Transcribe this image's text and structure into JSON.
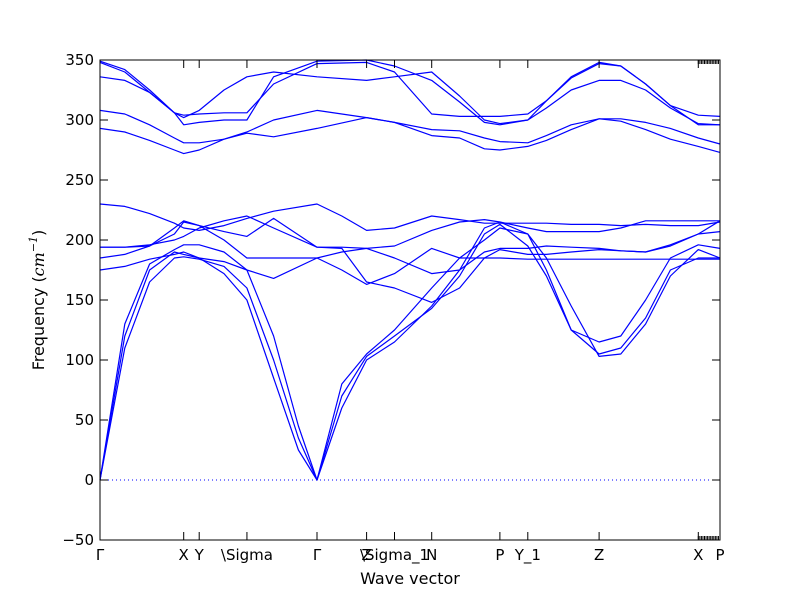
{
  "chart_data": {
    "type": "line",
    "title": "",
    "xlabel": "Wave vector",
    "ylabel_main": "Frequency (",
    "ylabel_unit_base": "cm",
    "ylabel_unit_exp": "−1",
    "ylabel_close": ")",
    "ylim": [
      -50,
      350
    ],
    "ytick_labels": [
      "−50",
      "0",
      "50",
      "100",
      "150",
      "200",
      "250",
      "300",
      "350"
    ],
    "yticks": [
      -50,
      0,
      50,
      100,
      150,
      200,
      250,
      300,
      350
    ],
    "grid": false,
    "legend": "none",
    "line_color": "#0000ff",
    "zero_line": {
      "y": 0,
      "style": "dotted"
    },
    "x_points": [
      {
        "x": 0.0,
        "label": "Γ"
      },
      {
        "x": 0.135,
        "label": "X"
      },
      {
        "x": 0.16,
        "label": "Y"
      },
      {
        "x": 0.237,
        "label": "\\Sigma"
      },
      {
        "x": 0.35,
        "label": "Γ"
      },
      {
        "x": 0.43,
        "label": "Z"
      },
      {
        "x": 0.475,
        "label": "\\Sigma_1"
      },
      {
        "x": 0.535,
        "label": "N"
      },
      {
        "x": 0.645,
        "label": "P"
      },
      {
        "x": 0.69,
        "label": "Y_1"
      },
      {
        "x": 0.805,
        "label": "Z"
      },
      {
        "x": 0.965,
        "label": "X"
      },
      {
        "x": 1.0,
        "label": "P"
      }
    ],
    "series": [
      {
        "x": [
          0,
          0.04,
          0.08,
          0.12,
          0.135,
          0.16,
          0.2,
          0.237,
          0.28,
          0.32,
          0.35,
          0.39,
          0.43,
          0.475,
          0.535,
          0.58,
          0.62,
          0.645,
          0.69,
          0.72,
          0.76,
          0.805,
          0.84,
          0.88,
          0.92,
          0.965,
          1.0
        ],
        "y": [
          0,
          110,
          165,
          185,
          186,
          184,
          178,
          160,
          100,
          35,
          0,
          60,
          100,
          115,
          145,
          175,
          210,
          215,
          205,
          175,
          125,
          105,
          110,
          135,
          175,
          185,
          185
        ]
      },
      {
        "x": [
          0,
          0.04,
          0.08,
          0.12,
          0.135,
          0.16,
          0.2,
          0.237,
          0.28,
          0.32,
          0.35,
          0.39,
          0.43,
          0.475,
          0.535,
          0.58,
          0.62,
          0.645,
          0.69,
          0.72,
          0.76,
          0.805,
          0.84,
          0.88,
          0.92,
          0.965,
          1.0
        ],
        "y": [
          0,
          120,
          175,
          190,
          188,
          185,
          172,
          150,
          85,
          25,
          0,
          70,
          103,
          120,
          143,
          170,
          205,
          213,
          195,
          170,
          125,
          115,
          120,
          150,
          185,
          196,
          193
        ]
      },
      {
        "x": [
          0,
          0.04,
          0.08,
          0.12,
          0.135,
          0.16,
          0.2,
          0.237,
          0.28,
          0.32,
          0.35,
          0.39,
          0.43,
          0.475,
          0.535,
          0.58,
          0.62,
          0.645,
          0.69,
          0.72,
          0.76,
          0.805,
          0.84,
          0.88,
          0.92,
          0.965,
          1.0
        ],
        "y": [
          0,
          130,
          180,
          192,
          196,
          196,
          190,
          175,
          120,
          45,
          0,
          80,
          105,
          125,
          160,
          185,
          200,
          210,
          205,
          185,
          145,
          103,
          105,
          130,
          170,
          192,
          185
        ]
      },
      {
        "x": [
          0,
          0.04,
          0.08,
          0.12,
          0.135,
          0.16,
          0.2,
          0.237,
          0.28,
          0.35,
          0.39,
          0.43,
          0.475,
          0.535,
          0.58,
          0.62,
          0.645,
          0.69,
          0.72,
          0.76,
          0.805,
          0.84,
          0.88,
          0.92,
          0.965,
          1.0
        ],
        "y": [
          175,
          178,
          184,
          188,
          190,
          185,
          182,
          175,
          168,
          185,
          175,
          163,
          172,
          193,
          185,
          185,
          185,
          184,
          184,
          184,
          184,
          184,
          184,
          184,
          184,
          184
        ]
      },
      {
        "x": [
          0,
          0.04,
          0.08,
          0.12,
          0.135,
          0.16,
          0.2,
          0.237,
          0.28,
          0.35,
          0.39,
          0.43,
          0.475,
          0.535,
          0.58,
          0.62,
          0.645,
          0.69,
          0.72,
          0.76,
          0.805,
          0.84,
          0.88,
          0.92,
          0.965,
          1.0
        ],
        "y": [
          185,
          188,
          195,
          210,
          216,
          212,
          200,
          185,
          185,
          185,
          190,
          193,
          185,
          172,
          175,
          190,
          193,
          193,
          195,
          194,
          193,
          191,
          190,
          195,
          205,
          207
        ]
      },
      {
        "x": [
          0,
          0.04,
          0.08,
          0.12,
          0.135,
          0.16,
          0.2,
          0.237,
          0.28,
          0.35,
          0.39,
          0.43,
          0.475,
          0.535,
          0.58,
          0.62,
          0.645,
          0.69,
          0.72,
          0.76,
          0.805,
          0.84,
          0.88,
          0.92,
          0.965,
          1.0
        ],
        "y": [
          194,
          194,
          195,
          205,
          215,
          212,
          207,
          203,
          218,
          194,
          194,
          193,
          195,
          208,
          215,
          217,
          215,
          210,
          207,
          207,
          207,
          210,
          216,
          216,
          216,
          216
        ]
      },
      {
        "x": [
          0,
          0.04,
          0.08,
          0.12,
          0.135,
          0.16,
          0.2,
          0.237,
          0.28,
          0.35,
          0.39,
          0.43,
          0.475,
          0.535,
          0.58,
          0.62,
          0.645,
          0.69,
          0.72,
          0.76,
          0.805,
          0.84,
          0.88,
          0.92,
          0.965,
          1.0
        ],
        "y": [
          230,
          228,
          222,
          214,
          210,
          208,
          212,
          218,
          224,
          230,
          220,
          208,
          210,
          220,
          217,
          214,
          214,
          214,
          214,
          213,
          213,
          212,
          213,
          212,
          212,
          215
        ]
      },
      {
        "x": [
          0,
          0.04,
          0.08,
          0.12,
          0.135,
          0.16,
          0.2,
          0.237,
          0.28,
          0.35,
          0.39,
          0.43,
          0.475,
          0.535,
          0.58,
          0.62,
          0.645,
          0.69,
          0.72,
          0.76,
          0.805,
          0.84,
          0.88,
          0.92,
          0.965,
          1.0
        ],
        "y": [
          194,
          194,
          196,
          200,
          203,
          210,
          216,
          220,
          210,
          194,
          193,
          165,
          160,
          148,
          160,
          185,
          192,
          188,
          188,
          190,
          192,
          191,
          190,
          196,
          205,
          216
        ]
      },
      {
        "x": [
          0,
          0.04,
          0.08,
          0.12,
          0.135,
          0.16,
          0.2,
          0.237,
          0.28,
          0.35,
          0.43,
          0.475,
          0.535,
          0.58,
          0.62,
          0.645,
          0.69,
          0.72,
          0.76,
          0.805,
          0.84,
          0.88,
          0.92,
          0.965,
          1.0
        ],
        "y": [
          293,
          290,
          283,
          275,
          272,
          275,
          284,
          289,
          286,
          293,
          302,
          298,
          287,
          285,
          276,
          275,
          278,
          283,
          292,
          301,
          299,
          292,
          284,
          278,
          273
        ]
      },
      {
        "x": [
          0,
          0.04,
          0.08,
          0.12,
          0.135,
          0.16,
          0.2,
          0.237,
          0.28,
          0.35,
          0.43,
          0.475,
          0.535,
          0.58,
          0.62,
          0.645,
          0.69,
          0.72,
          0.76,
          0.805,
          0.84,
          0.88,
          0.92,
          0.965,
          1.0
        ],
        "y": [
          308,
          305,
          296,
          285,
          281,
          281,
          284,
          290,
          300,
          308,
          302,
          298,
          292,
          291,
          285,
          282,
          281,
          287,
          296,
          301,
          301,
          298,
          293,
          285,
          280
        ]
      },
      {
        "x": [
          0,
          0.04,
          0.08,
          0.12,
          0.135,
          0.16,
          0.2,
          0.237,
          0.28,
          0.35,
          0.43,
          0.475,
          0.535,
          0.58,
          0.62,
          0.645,
          0.69,
          0.72,
          0.76,
          0.805,
          0.84,
          0.88,
          0.92,
          0.965,
          1.0
        ],
        "y": [
          336,
          333,
          323,
          306,
          302,
          308,
          325,
          336,
          340,
          336,
          333,
          336,
          340,
          320,
          300,
          297,
          300,
          310,
          325,
          333,
          333,
          325,
          310,
          297,
          296
        ]
      },
      {
        "x": [
          0,
          0.04,
          0.08,
          0.12,
          0.135,
          0.16,
          0.2,
          0.237,
          0.28,
          0.35,
          0.43,
          0.475,
          0.535,
          0.58,
          0.62,
          0.645,
          0.69,
          0.72,
          0.76,
          0.805,
          0.84,
          0.88,
          0.92,
          0.965,
          1.0
        ],
        "y": [
          348,
          340,
          323,
          306,
          304,
          305,
          306,
          306,
          330,
          347,
          348,
          340,
          305,
          303,
          303,
          303,
          305,
          316,
          335,
          347,
          345,
          330,
          312,
          304,
          303
        ]
      },
      {
        "x": [
          0,
          0.04,
          0.08,
          0.12,
          0.135,
          0.16,
          0.2,
          0.237,
          0.28,
          0.35,
          0.43,
          0.475,
          0.535,
          0.58,
          0.62,
          0.645,
          0.69,
          0.72,
          0.76,
          0.805,
          0.84,
          0.88,
          0.92,
          0.965,
          1.0
        ],
        "y": [
          349,
          342,
          325,
          306,
          296,
          298,
          300,
          300,
          336,
          349,
          350,
          345,
          333,
          315,
          298,
          296,
          300,
          316,
          336,
          348,
          345,
          330,
          312,
          296,
          296
        ]
      }
    ]
  }
}
